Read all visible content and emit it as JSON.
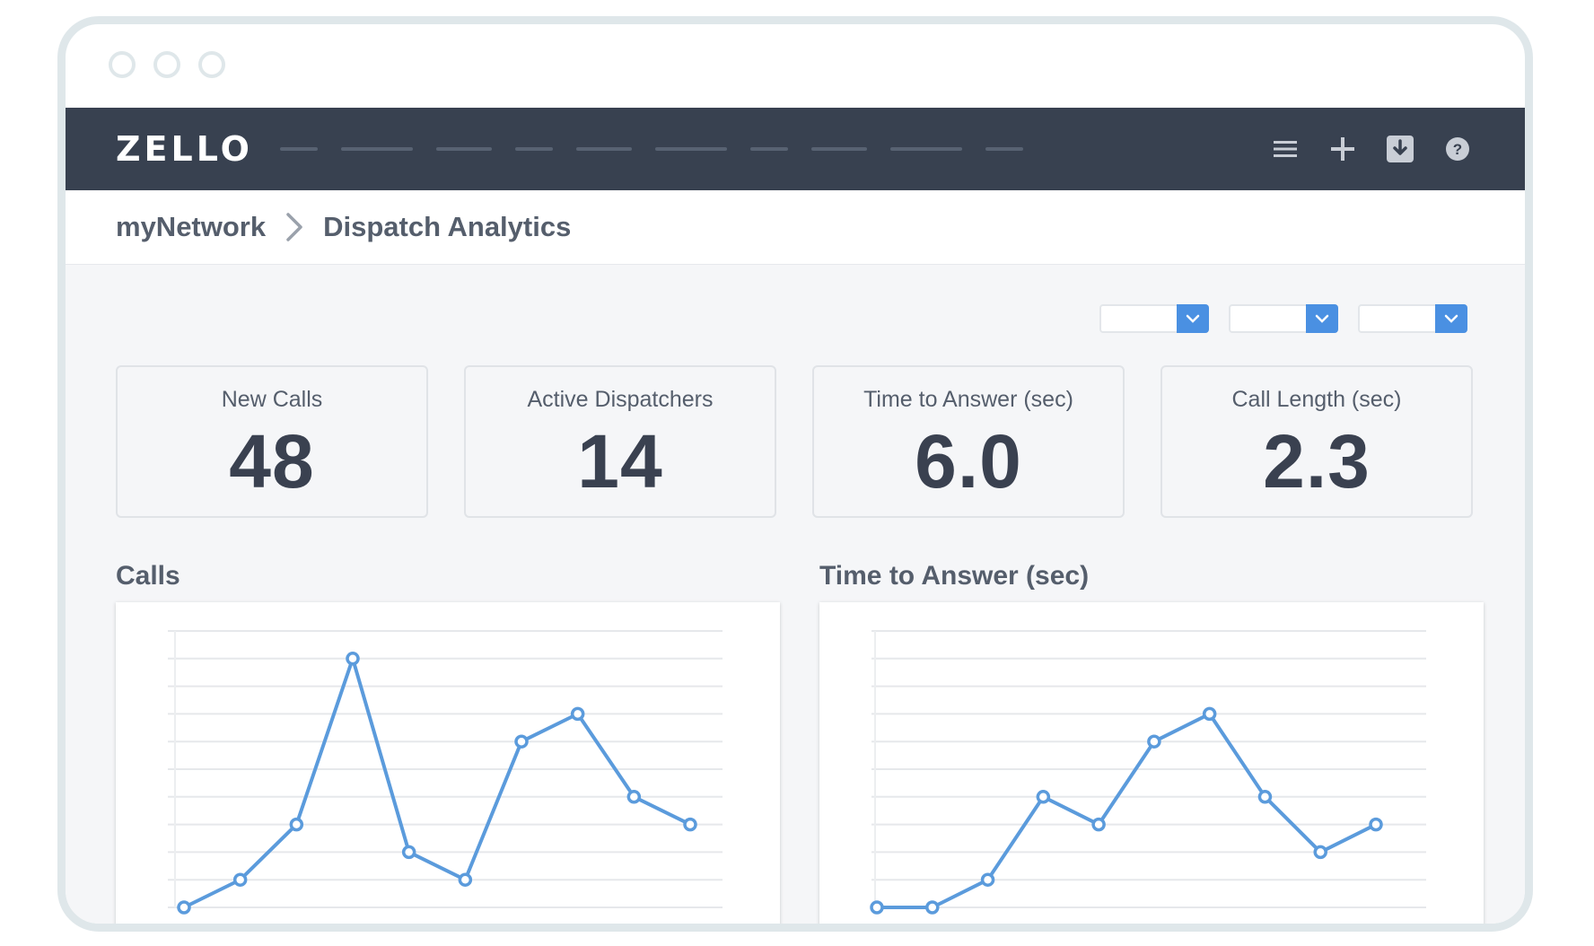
{
  "app": {
    "logo_text": "ZELLO",
    "nav_icons": [
      "menu-icon",
      "plus-icon",
      "download-icon",
      "help-icon"
    ]
  },
  "breadcrumb": {
    "root": "myNetwork",
    "current": "Dispatch Analytics"
  },
  "kpis": [
    {
      "label": "New Calls",
      "value": "48"
    },
    {
      "label": "Active Dispatchers",
      "value": "14"
    },
    {
      "label": "Time to Answer (sec)",
      "value": "6.0"
    },
    {
      "label": "Call Length (sec)",
      "value": "2.3"
    }
  ],
  "charts": {
    "calls_title": "Calls",
    "tta_title": "Time to Answer (sec)"
  },
  "colors": {
    "nav_bg": "#384150",
    "accent": "#4a90e2",
    "text": "#3a4150"
  },
  "chart_data": [
    {
      "type": "line",
      "title": "Calls",
      "x": [
        1,
        2,
        3,
        4,
        5,
        6,
        7,
        8,
        9,
        10
      ],
      "values": [
        0,
        1,
        3,
        9,
        2,
        1,
        6,
        7,
        4,
        3
      ],
      "ylim": [
        0,
        10
      ],
      "grid": true
    },
    {
      "type": "line",
      "title": "Time to Answer (sec)",
      "x": [
        1,
        2,
        3,
        4,
        5,
        6,
        7,
        8,
        9,
        10
      ],
      "values": [
        0,
        0,
        1,
        4,
        3,
        6,
        7,
        4,
        2,
        3
      ],
      "ylim": [
        0,
        10
      ],
      "grid": true
    }
  ]
}
